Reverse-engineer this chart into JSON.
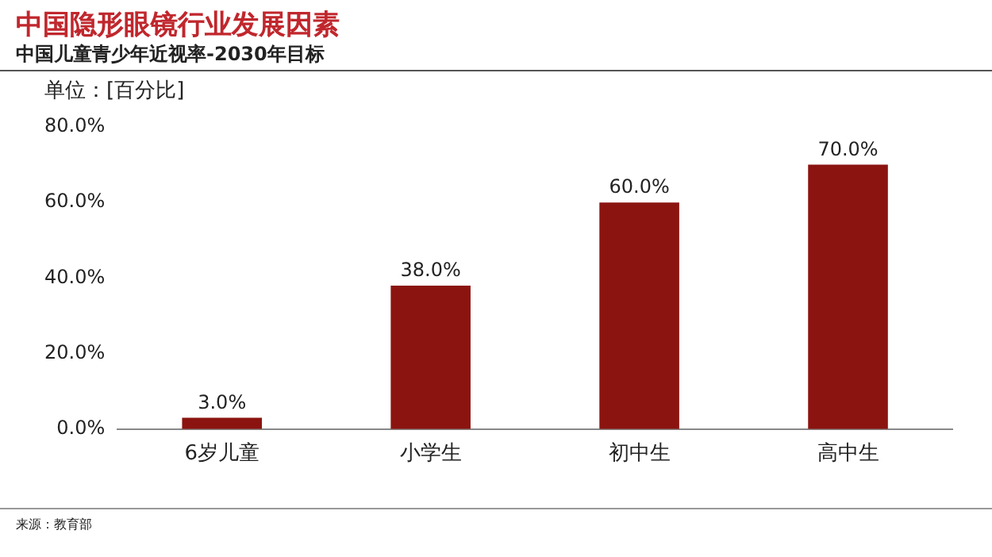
{
  "chart_data": {
    "type": "bar",
    "title": "中国隐形眼镜行业发展因素",
    "subtitle": "中国儿童青少年近视率-2030年目标",
    "ylabel": "单位：[百分比]",
    "categories": [
      "6岁儿童",
      "小学生",
      "初中生",
      "高中生"
    ],
    "values": [
      3,
      38,
      60,
      70
    ],
    "color": "#8b1410",
    "value_labels": [
      "3.0%",
      "38.0%",
      "60.0%",
      "70.0%"
    ],
    "ylim": [
      0,
      80
    ],
    "yticks": [
      {
        "value": 0,
        "label": "0.0%"
      },
      {
        "value": 20,
        "label": "20.0%"
      },
      {
        "value": 40,
        "label": "40.0%"
      },
      {
        "value": 60,
        "label": "60.0%"
      },
      {
        "value": 80,
        "label": "80.0%"
      }
    ],
    "grid": false,
    "legend": false,
    "annotations": [
      "来源：教育部"
    ]
  }
}
